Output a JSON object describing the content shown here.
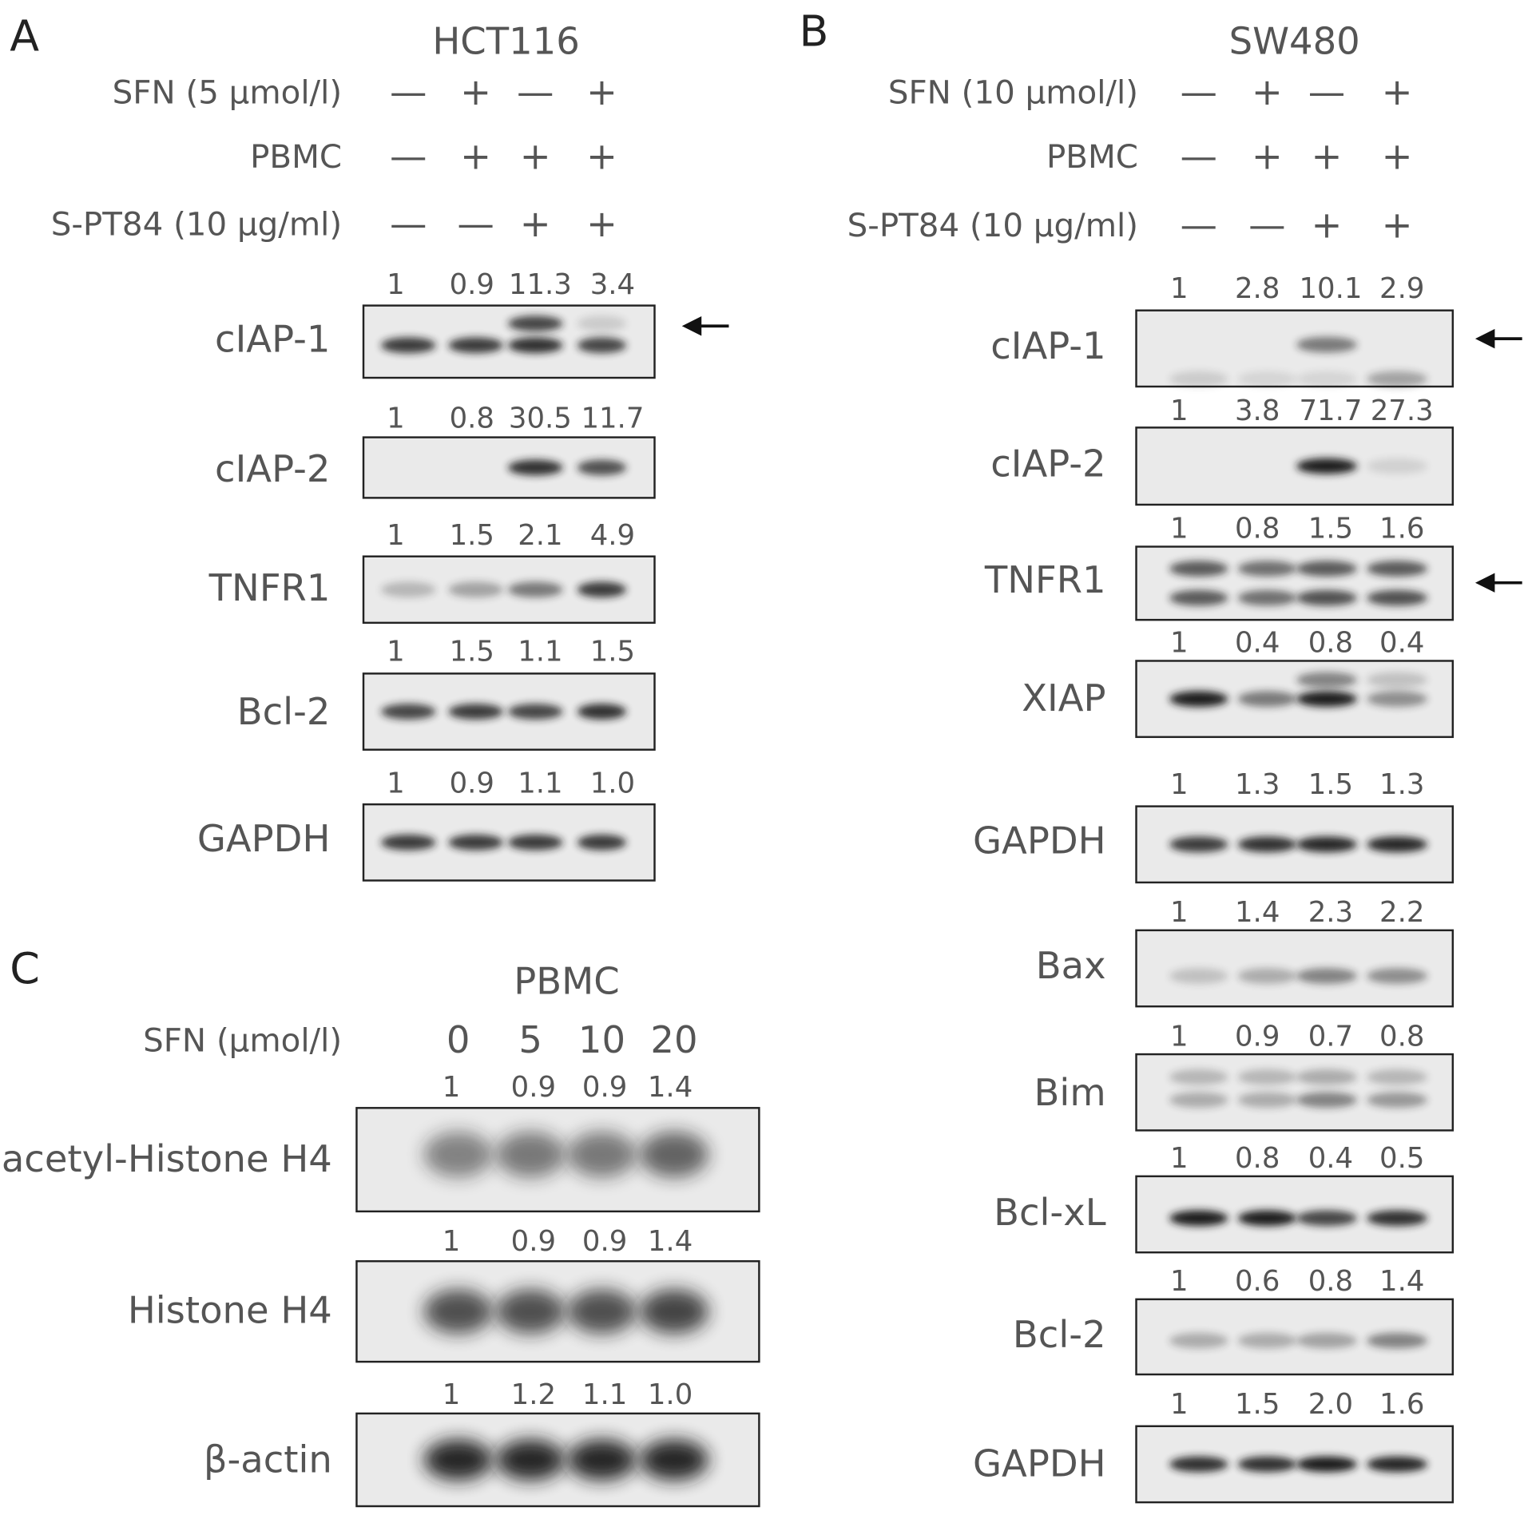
{
  "panels": [
    {
      "letter": "A",
      "title": "HCT116",
      "conditions": [
        {
          "label": "SFN (5 μmol/l)",
          "marks": [
            "—",
            "+",
            "—",
            "+"
          ]
        },
        {
          "label": "PBMC",
          "marks": [
            "—",
            "+",
            "+",
            "+"
          ]
        },
        {
          "label": "S-PT84 (10 μg/ml)",
          "marks": [
            "—",
            "—",
            "+",
            "+"
          ]
        }
      ],
      "blots": [
        {
          "label": "cIAP-1",
          "values": [
            "1",
            "0.9",
            "11.3",
            "3.4"
          ]
        },
        {
          "label": "cIAP-2",
          "values": [
            "1",
            "0.8",
            "30.5",
            "11.7"
          ]
        },
        {
          "label": "TNFR1",
          "values": [
            "1",
            "1.5",
            "2.1",
            "4.9"
          ]
        },
        {
          "label": "Bcl-2",
          "values": [
            "1",
            "1.5",
            "1.1",
            "1.5"
          ]
        },
        {
          "label": "GAPDH",
          "values": [
            "1",
            "0.9",
            "1.1",
            "1.0"
          ]
        }
      ]
    },
    {
      "letter": "B",
      "title": "SW480",
      "conditions": [
        {
          "label": "SFN (10 μmol/l)",
          "marks": [
            "—",
            "+",
            "—",
            "+"
          ]
        },
        {
          "label": "PBMC",
          "marks": [
            "—",
            "+",
            "+",
            "+"
          ]
        },
        {
          "label": "S-PT84 (10 μg/ml)",
          "marks": [
            "—",
            "—",
            "+",
            "+"
          ]
        }
      ],
      "blots": [
        {
          "label": "cIAP-1",
          "values": [
            "1",
            "2.8",
            "10.1",
            "2.9"
          ]
        },
        {
          "label": "cIAP-2",
          "values": [
            "1",
            "3.8",
            "71.7",
            "27.3"
          ]
        },
        {
          "label": "TNFR1",
          "values": [
            "1",
            "0.8",
            "1.5",
            "1.6"
          ]
        },
        {
          "label": "XIAP",
          "values": [
            "1",
            "0.4",
            "0.8",
            "0.4"
          ]
        },
        {
          "label": "GAPDH",
          "values": [
            "1",
            "1.3",
            "1.5",
            "1.3"
          ]
        },
        {
          "label": "Bax",
          "values": [
            "1",
            "1.4",
            "2.3",
            "2.2"
          ]
        },
        {
          "label": "Bim",
          "values": [
            "1",
            "0.9",
            "0.7",
            "0.8"
          ]
        },
        {
          "label": "Bcl-xL",
          "values": [
            "1",
            "0.8",
            "0.4",
            "0.5"
          ]
        },
        {
          "label": "Bcl-2",
          "values": [
            "1",
            "0.6",
            "0.8",
            "1.4"
          ]
        },
        {
          "label": "GAPDH",
          "values": [
            "1",
            "1.5",
            "2.0",
            "1.6"
          ]
        }
      ]
    },
    {
      "letter": "C",
      "title": "PBMC",
      "conditions": [
        {
          "label": "SFN (μmol/l)",
          "marks": [
            "0",
            "5",
            "10",
            "20"
          ]
        }
      ],
      "blots": [
        {
          "label": "acetyl-Histone H4",
          "values": [
            "1",
            "0.9",
            "0.9",
            "1.4"
          ]
        },
        {
          "label": "Histone H4",
          "values": [
            "1",
            "0.9",
            "0.9",
            "1.4"
          ]
        },
        {
          "label": "β-actin",
          "values": [
            "1",
            "1.2",
            "1.1",
            "1.0"
          ]
        }
      ]
    }
  ]
}
